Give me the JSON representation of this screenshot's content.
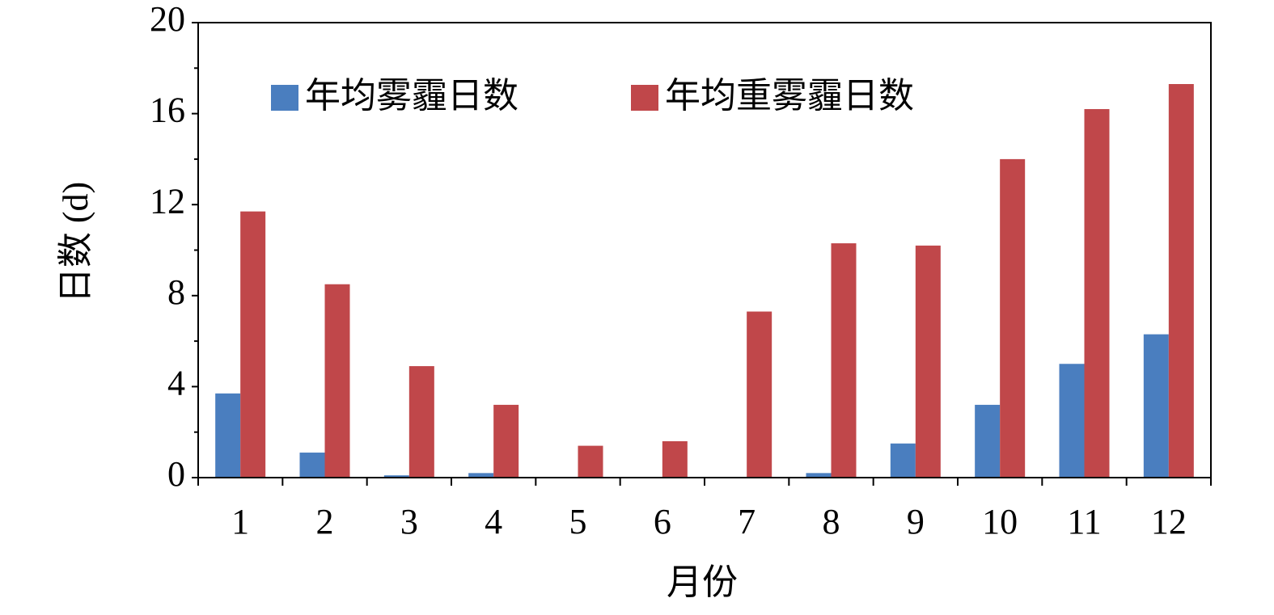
{
  "chart_data": {
    "type": "bar",
    "x_label": "月份",
    "y_label": "日数 (d)",
    "categories": [
      "1",
      "2",
      "3",
      "4",
      "5",
      "6",
      "7",
      "8",
      "9",
      "10",
      "11",
      "12"
    ],
    "series": [
      {
        "name": "年均雾霾日数",
        "color": "#4a7ebf",
        "values": [
          3.7,
          1.1,
          0.1,
          0.2,
          0,
          0,
          0,
          0.2,
          1.5,
          3.2,
          5.0,
          6.3
        ]
      },
      {
        "name": "年均重雾霾日数",
        "color": "#c0474a",
        "values": [
          11.7,
          8.5,
          4.9,
          3.2,
          1.4,
          1.6,
          7.3,
          10.3,
          10.2,
          14.0,
          16.2,
          17.3
        ]
      }
    ],
    "ylim": [
      0,
      20
    ],
    "yticks": [
      0,
      4,
      8,
      12,
      16,
      20
    ]
  }
}
